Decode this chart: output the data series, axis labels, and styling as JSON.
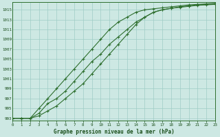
{
  "title": "Graphe pression niveau de la mer (hPa)",
  "bg_color": "#cde8e3",
  "grid_color": "#9fccc5",
  "line_color": "#2d6e2d",
  "text_color": "#1a4e1a",
  "xlim": [
    0,
    23
  ],
  "ylim": [
    992.5,
    1016.5
  ],
  "yticks": [
    993,
    995,
    997,
    999,
    1001,
    1003,
    1005,
    1007,
    1009,
    1011,
    1013,
    1015
  ],
  "xticks": [
    0,
    1,
    2,
    3,
    4,
    5,
    6,
    7,
    8,
    9,
    10,
    11,
    12,
    13,
    14,
    15,
    16,
    17,
    18,
    19,
    20,
    21,
    22,
    23
  ],
  "series1_x": [
    0,
    1,
    2,
    3,
    4,
    5,
    6,
    7,
    8,
    9,
    10,
    11,
    12,
    13,
    14,
    15,
    16,
    17,
    18,
    19,
    20,
    21,
    22,
    23
  ],
  "series1_y": [
    993,
    993,
    993,
    994,
    996,
    997,
    998.5,
    1000.5,
    1002.5,
    1004.5,
    1006,
    1008,
    1009.5,
    1011,
    1012.5,
    1013.5,
    1014.5,
    1015,
    1015.3,
    1015.5,
    1015.7,
    1015.9,
    1016.0,
    1016.1
  ],
  "series2_x": [
    0,
    1,
    2,
    3,
    4,
    5,
    6,
    7,
    8,
    9,
    10,
    11,
    12,
    13,
    14,
    15,
    16,
    17,
    18,
    19,
    20,
    21,
    22,
    23
  ],
  "series2_y": [
    993,
    993,
    993,
    995,
    997,
    999,
    1001,
    1003,
    1005,
    1007,
    1009,
    1011,
    1012.5,
    1013.5,
    1014.5,
    1015,
    1015.2,
    1015.4,
    1015.6,
    1015.8,
    1016.0,
    1016.1,
    1016.2,
    1016.3
  ],
  "series3_x": [
    0,
    1,
    2,
    3,
    4,
    5,
    6,
    7,
    8,
    9,
    10,
    11,
    12,
    13,
    14,
    15,
    16,
    17,
    18,
    19,
    20,
    21,
    22,
    23
  ],
  "series3_y": [
    993,
    993,
    993,
    993.5,
    994.5,
    995.5,
    997,
    998.5,
    1000,
    1002,
    1004,
    1006,
    1008,
    1010,
    1012,
    1013.5,
    1014.5,
    1015,
    1015.3,
    1015.6,
    1015.8,
    1016.0,
    1016.1,
    1016.2
  ]
}
